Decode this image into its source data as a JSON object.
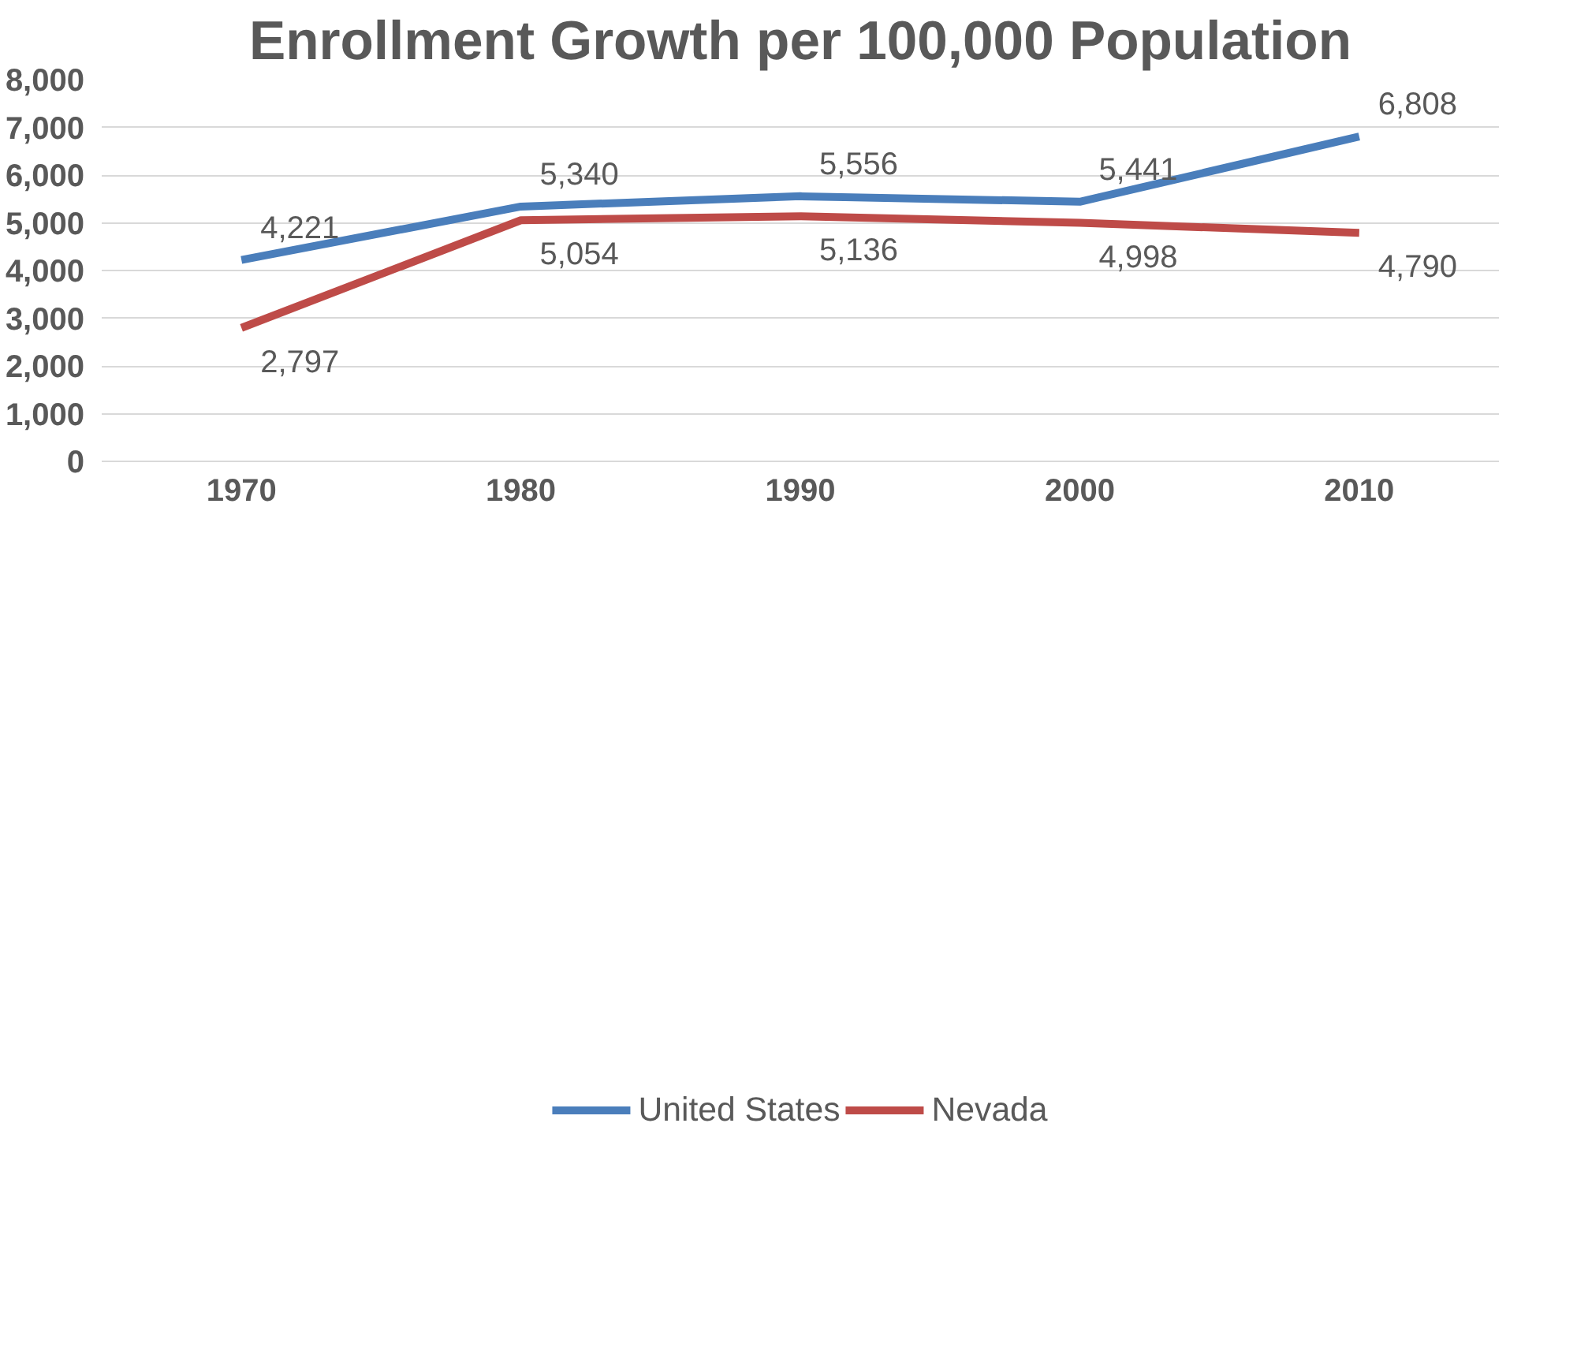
{
  "chart_data": {
    "type": "line",
    "title": "Enrollment Growth per 100,000 Population",
    "categories": [
      "1970",
      "1980",
      "1990",
      "2000",
      "2010"
    ],
    "series": [
      {
        "name": "United States",
        "color": "#4a7ebb",
        "values": [
          4221,
          5340,
          5556,
          5441,
          6808
        ],
        "value_labels": [
          "4,221",
          "5,340",
          "5,556",
          "5,441",
          "6,808"
        ]
      },
      {
        "name": "Nevada",
        "color": "#be4b48",
        "values": [
          2797,
          5054,
          5136,
          4998,
          4790
        ],
        "value_labels": [
          "2,797",
          "5,054",
          "5,136",
          "4,998",
          "4,790"
        ]
      }
    ],
    "ylim": [
      0,
      8000
    ],
    "yticks": [
      {
        "value": 0,
        "label": "0"
      },
      {
        "value": 1000,
        "label": "1,000"
      },
      {
        "value": 2000,
        "label": "2,000"
      },
      {
        "value": 3000,
        "label": "3,000"
      },
      {
        "value": 4000,
        "label": "4,000"
      },
      {
        "value": 5000,
        "label": "5,000"
      },
      {
        "value": 6000,
        "label": "6,000"
      },
      {
        "value": 7000,
        "label": "7,000"
      },
      {
        "value": 8000,
        "label": "8,000"
      }
    ],
    "grid": "y",
    "legend": "bottom",
    "marker": "none",
    "line_style": "solid"
  }
}
